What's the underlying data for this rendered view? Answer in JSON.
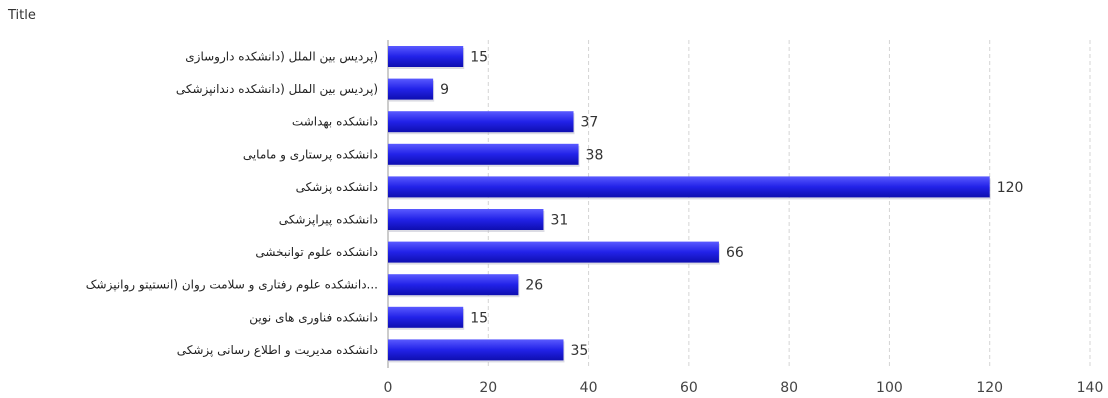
{
  "chart_data": {
    "type": "bar",
    "orientation": "horizontal",
    "title": "Title",
    "categories": [
      "(پردیس بین الملل (دانشکده داروسازی",
      "(پردیس بین الملل (دانشکده دندانپزشکی",
      "دانشکده بهداشت",
      "دانشکده پرستاری و مامایی",
      "دانشکده پزشکی",
      "دانشکده پیراپزشکی",
      "دانشکده علوم توانبخشی",
      "...دانشکده علوم رفتاری و سلامت روان (انستیتو روانپزشک",
      "دانشکده فناوری های نوین",
      "دانشکده مدیریت و اطلاع رسانی پزشکی"
    ],
    "values": [
      15,
      9,
      37,
      38,
      120,
      31,
      66,
      26,
      15,
      35
    ],
    "xlim": [
      0,
      140
    ],
    "xticks": [
      "0",
      "20",
      "40",
      "60",
      "80",
      "100",
      "120",
      "140"
    ],
    "grid": true,
    "bar_color": "#2222dd"
  }
}
